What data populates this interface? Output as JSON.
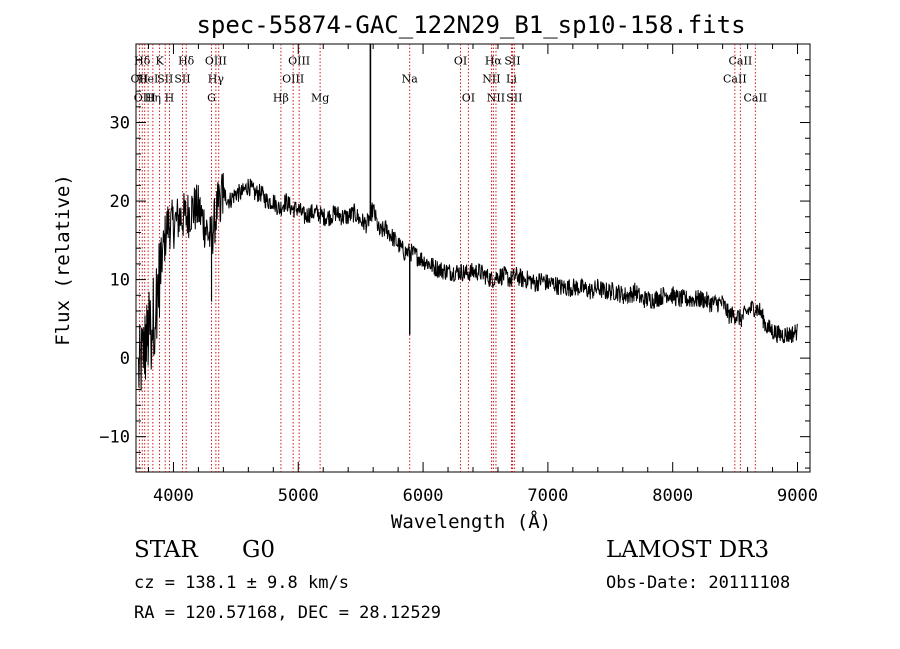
{
  "chart_data": {
    "type": "line",
    "title": "spec-55874-GAC_122N29_B1_sp10-158.fits",
    "xlabel": "Wavelength (Å)",
    "ylabel": "Flux (relative)",
    "xlim": [
      3700,
      9100
    ],
    "ylim": [
      -14.5,
      40
    ],
    "x_ticks": [
      4000,
      5000,
      6000,
      7000,
      8000,
      9000
    ],
    "y_ticks": [
      -10,
      0,
      10,
      20,
      30
    ],
    "series": [
      {
        "name": "spectrum",
        "x": [
          3700,
          3750,
          3800,
          3850,
          3900,
          3950,
          4000,
          4050,
          4100,
          4150,
          4200,
          4250,
          4300,
          4350,
          4400,
          4450,
          4500,
          4550,
          4600,
          4650,
          4700,
          4750,
          4800,
          4850,
          4900,
          4950,
          5000,
          5050,
          5100,
          5150,
          5200,
          5250,
          5300,
          5350,
          5400,
          5450,
          5500,
          5550,
          5600,
          5650,
          5700,
          5750,
          5800,
          5850,
          5900,
          5950,
          6000,
          6050,
          6100,
          6150,
          6200,
          6250,
          6300,
          6350,
          6400,
          6450,
          6500,
          6550,
          6600,
          6650,
          6700,
          6750,
          6800,
          6850,
          6900,
          6950,
          7000,
          7050,
          7100,
          7150,
          7200,
          7250,
          7300,
          7350,
          7400,
          7450,
          7500,
          7550,
          7600,
          7650,
          7700,
          7750,
          7800,
          7850,
          7900,
          7950,
          8000,
          8050,
          8100,
          8150,
          8200,
          8250,
          8300,
          8350,
          8400,
          8450,
          8500,
          8550,
          8600,
          8650,
          8700,
          8750,
          8800,
          8850,
          8900,
          8950,
          9000
        ],
        "y": [
          -3,
          0,
          3,
          6,
          12,
          17,
          17,
          18,
          18,
          19,
          19,
          17,
          15,
          19,
          21,
          20,
          21,
          21,
          22,
          21,
          21,
          20,
          20,
          19,
          20,
          19,
          19,
          18,
          18.5,
          18.5,
          18,
          18,
          18.5,
          18,
          18,
          18.5,
          17.5,
          17,
          19,
          16,
          16.5,
          15.5,
          14.5,
          13.5,
          13.5,
          13,
          12.5,
          12,
          11.5,
          11.2,
          11,
          11,
          11,
          10.8,
          11,
          11,
          10.5,
          10,
          10.5,
          10.5,
          10,
          10.5,
          10,
          10,
          9.5,
          10,
          9.5,
          9.5,
          9,
          9,
          9,
          9,
          8.8,
          8.5,
          9,
          8.5,
          8.5,
          8.5,
          8,
          8,
          8.5,
          7.5,
          7.5,
          7.5,
          7.8,
          8.2,
          8,
          7.5,
          7.5,
          7.5,
          7.5,
          7.5,
          7,
          7,
          7,
          5.5,
          5.5,
          5,
          6,
          6.5,
          6,
          4,
          3.5,
          3,
          3,
          3,
          3.5
        ]
      }
    ],
    "features": [
      {
        "x": 3750,
        "y": 37.4,
        "label": "Hδ"
      },
      {
        "x": 3727,
        "y": 35.1,
        "label": "OII"
      },
      {
        "x": 3770,
        "y": 32.7,
        "label": "OIII"
      },
      {
        "x": 3797,
        "y": 35.1,
        "label": "HeI"
      },
      {
        "x": 3835,
        "y": 32.7,
        "label": "Hη"
      },
      {
        "x": 3889,
        "y": 37.4,
        "label": "K"
      },
      {
        "x": 3934,
        "y": 35.1,
        "label": "SII"
      },
      {
        "x": 3968,
        "y": 32.7,
        "label": "H"
      },
      {
        "x": 4102,
        "y": 37.4,
        "label": "Hδ"
      },
      {
        "x": 4072,
        "y": 35.1,
        "label": "SII"
      },
      {
        "x": 4340,
        "y": 37.4,
        "label": "OIII"
      },
      {
        "x": 4340,
        "y": 35.1,
        "label": "Hγ"
      },
      {
        "x": 4305,
        "y": 32.7,
        "label": "G"
      },
      {
        "x": 5007,
        "y": 37.4,
        "label": "OIII"
      },
      {
        "x": 4959,
        "y": 35.1,
        "label": "OIII"
      },
      {
        "x": 4861,
        "y": 32.7,
        "label": "Hβ"
      },
      {
        "x": 5175,
        "y": 32.7,
        "label": "Mg"
      },
      {
        "x": 5893,
        "y": 35.1,
        "label": "Na"
      },
      {
        "x": 6300,
        "y": 37.4,
        "label": "OI"
      },
      {
        "x": 6363,
        "y": 32.7,
        "label": "OI"
      },
      {
        "x": 6563,
        "y": 37.4,
        "label": "Hα"
      },
      {
        "x": 6716,
        "y": 37.4,
        "label": "SII"
      },
      {
        "x": 6548,
        "y": 35.1,
        "label": "NII"
      },
      {
        "x": 6708,
        "y": 35.1,
        "label": "Li"
      },
      {
        "x": 6584,
        "y": 32.7,
        "label": "NII"
      },
      {
        "x": 6731,
        "y": 32.7,
        "label": "SII"
      },
      {
        "x": 8542,
        "y": 37.4,
        "label": "CaII"
      },
      {
        "x": 8498,
        "y": 35.1,
        "label": "CaII"
      },
      {
        "x": 8662,
        "y": 32.7,
        "label": "CaII"
      }
    ],
    "line_markers": [
      3727,
      3750,
      3770,
      3797,
      3835,
      3889,
      3934,
      3968,
      4072,
      4102,
      4305,
      4340,
      4363,
      4861,
      4959,
      5007,
      5175,
      5893,
      6300,
      6363,
      6548,
      6563,
      6584,
      6708,
      6716,
      6731,
      8498,
      8542,
      8662
    ]
  },
  "info": {
    "class_label": "STAR",
    "subclass_label": "G0",
    "cz_text": "cz = 138.1 ± 9.8 km/s",
    "coord_text": "RA = 120.57168, DEC =  28.12529",
    "survey_label": "LAMOST DR3",
    "obs_date_text": "Obs-Date: 20111108"
  },
  "colors": {
    "axis": "#000000",
    "spectrum": "#000000",
    "markers": "#cc0000",
    "background": "#ffffff"
  }
}
